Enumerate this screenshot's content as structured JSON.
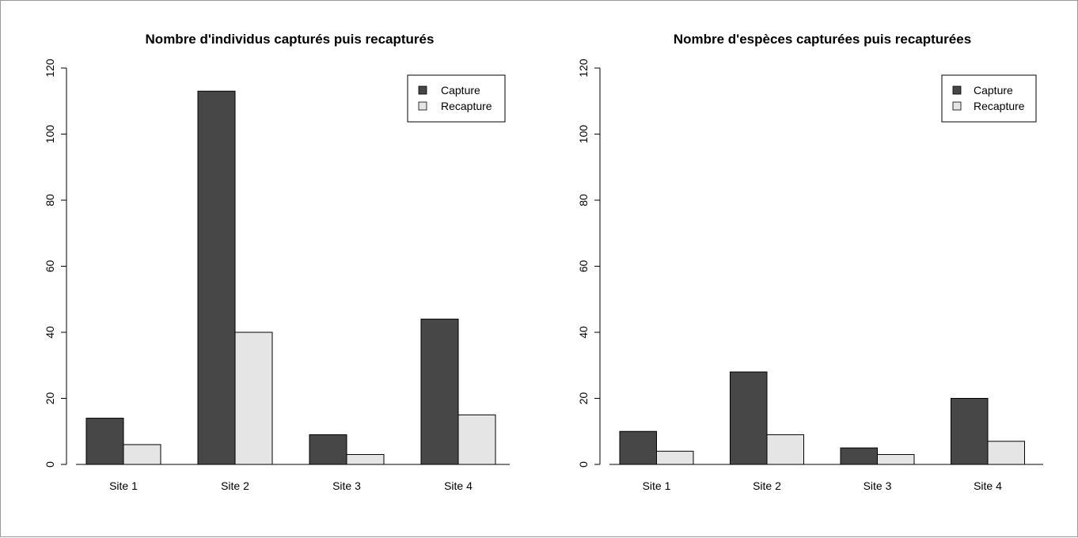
{
  "chart_data": [
    {
      "type": "bar",
      "title": "Nombre d'individus capturés puis recapturés",
      "xlabel": "",
      "ylabel": "",
      "categories": [
        "Site 1",
        "Site 2",
        "Site 3",
        "Site 4"
      ],
      "series": [
        {
          "name": "Capture",
          "values": [
            14,
            113,
            9,
            44
          ],
          "color": "#474747"
        },
        {
          "name": "Recapture",
          "values": [
            6,
            40,
            3,
            15
          ],
          "color": "#e5e5e5"
        }
      ],
      "ylim": [
        0,
        120
      ],
      "yticks": [
        "0",
        "20",
        "40",
        "60",
        "80",
        "100",
        "120"
      ],
      "grid": false,
      "legend_position": "top-right"
    },
    {
      "type": "bar",
      "title": "Nombre d'espèces capturées puis recapturées",
      "xlabel": "",
      "ylabel": "",
      "categories": [
        "Site 1",
        "Site 2",
        "Site 3",
        "Site 4"
      ],
      "series": [
        {
          "name": "Capture",
          "values": [
            10,
            28,
            5,
            20
          ],
          "color": "#474747"
        },
        {
          "name": "Recapture",
          "values": [
            4,
            9,
            3,
            7
          ],
          "color": "#e5e5e5"
        }
      ],
      "ylim": [
        0,
        120
      ],
      "yticks": [
        "0",
        "20",
        "40",
        "60",
        "80",
        "100",
        "120"
      ],
      "grid": false,
      "legend_position": "top-right"
    }
  ]
}
